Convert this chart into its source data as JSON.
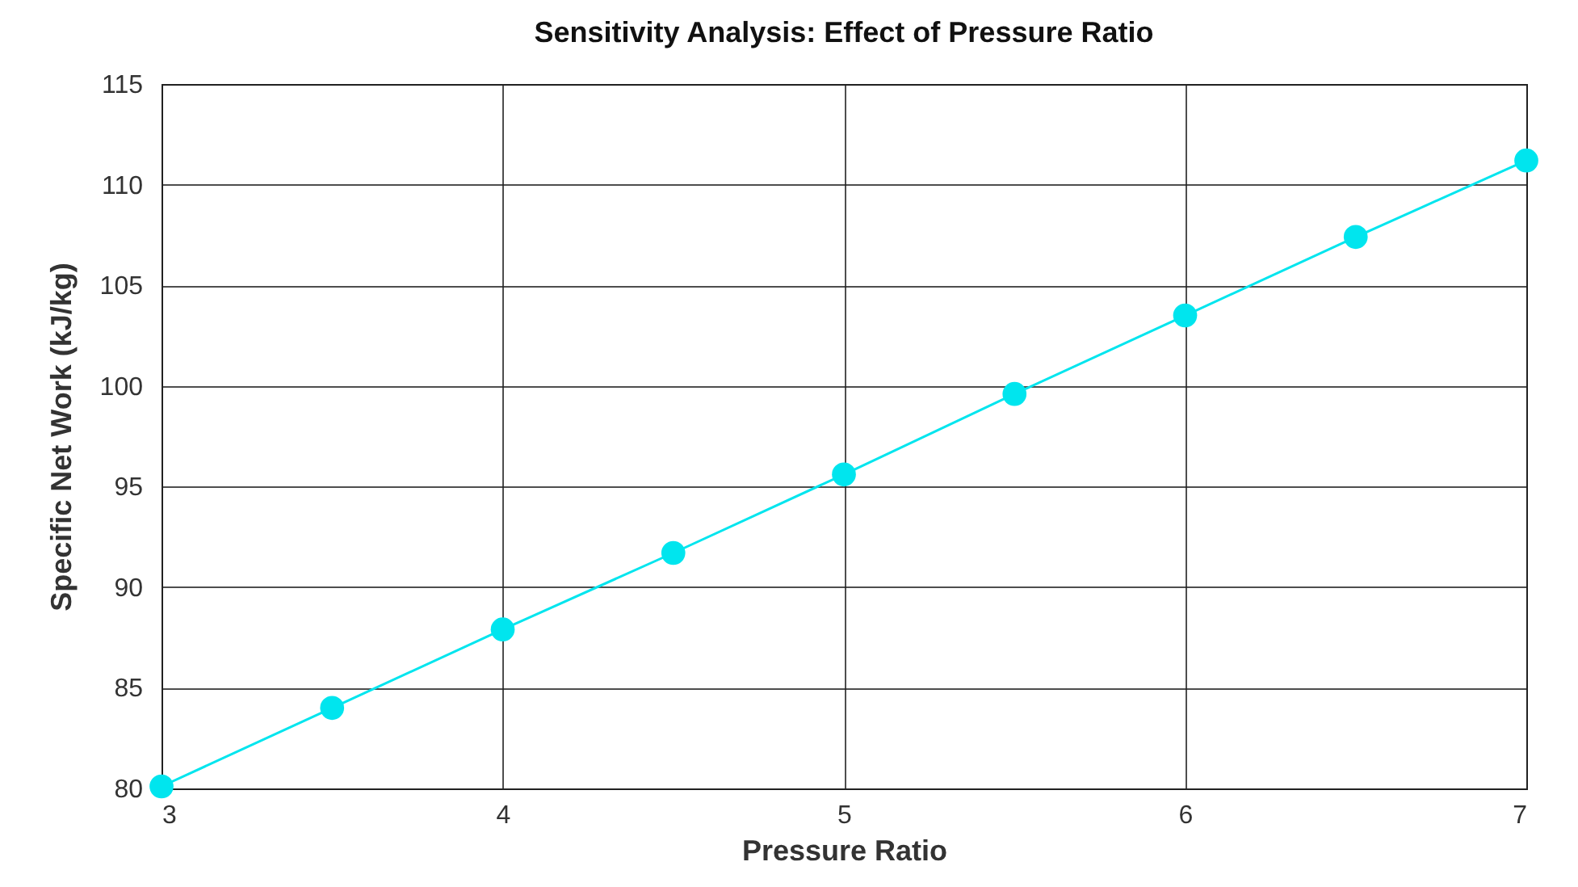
{
  "chart_data": {
    "type": "line",
    "title": "Sensitivity Analysis: Effect of Pressure Ratio",
    "xlabel": "Pressure Ratio",
    "ylabel": "Specific Net Work (kJ/kg)",
    "x": [
      3,
      3.5,
      4,
      4.5,
      5,
      5.5,
      6,
      6.5,
      7
    ],
    "series": [
      {
        "color": "#00e5ee",
        "values": [
          80.1,
          84.0,
          87.9,
          91.7,
          95.6,
          99.6,
          103.5,
          107.4,
          111.2
        ]
      }
    ],
    "xlim": [
      3,
      7
    ],
    "xticks": [
      3,
      4,
      5,
      6,
      7
    ],
    "ylim": [
      80,
      115
    ],
    "yticks": [
      80,
      85,
      90,
      95,
      100,
      105,
      110,
      115
    ],
    "grid": true,
    "marker": "circle",
    "line_style": "solid"
  }
}
